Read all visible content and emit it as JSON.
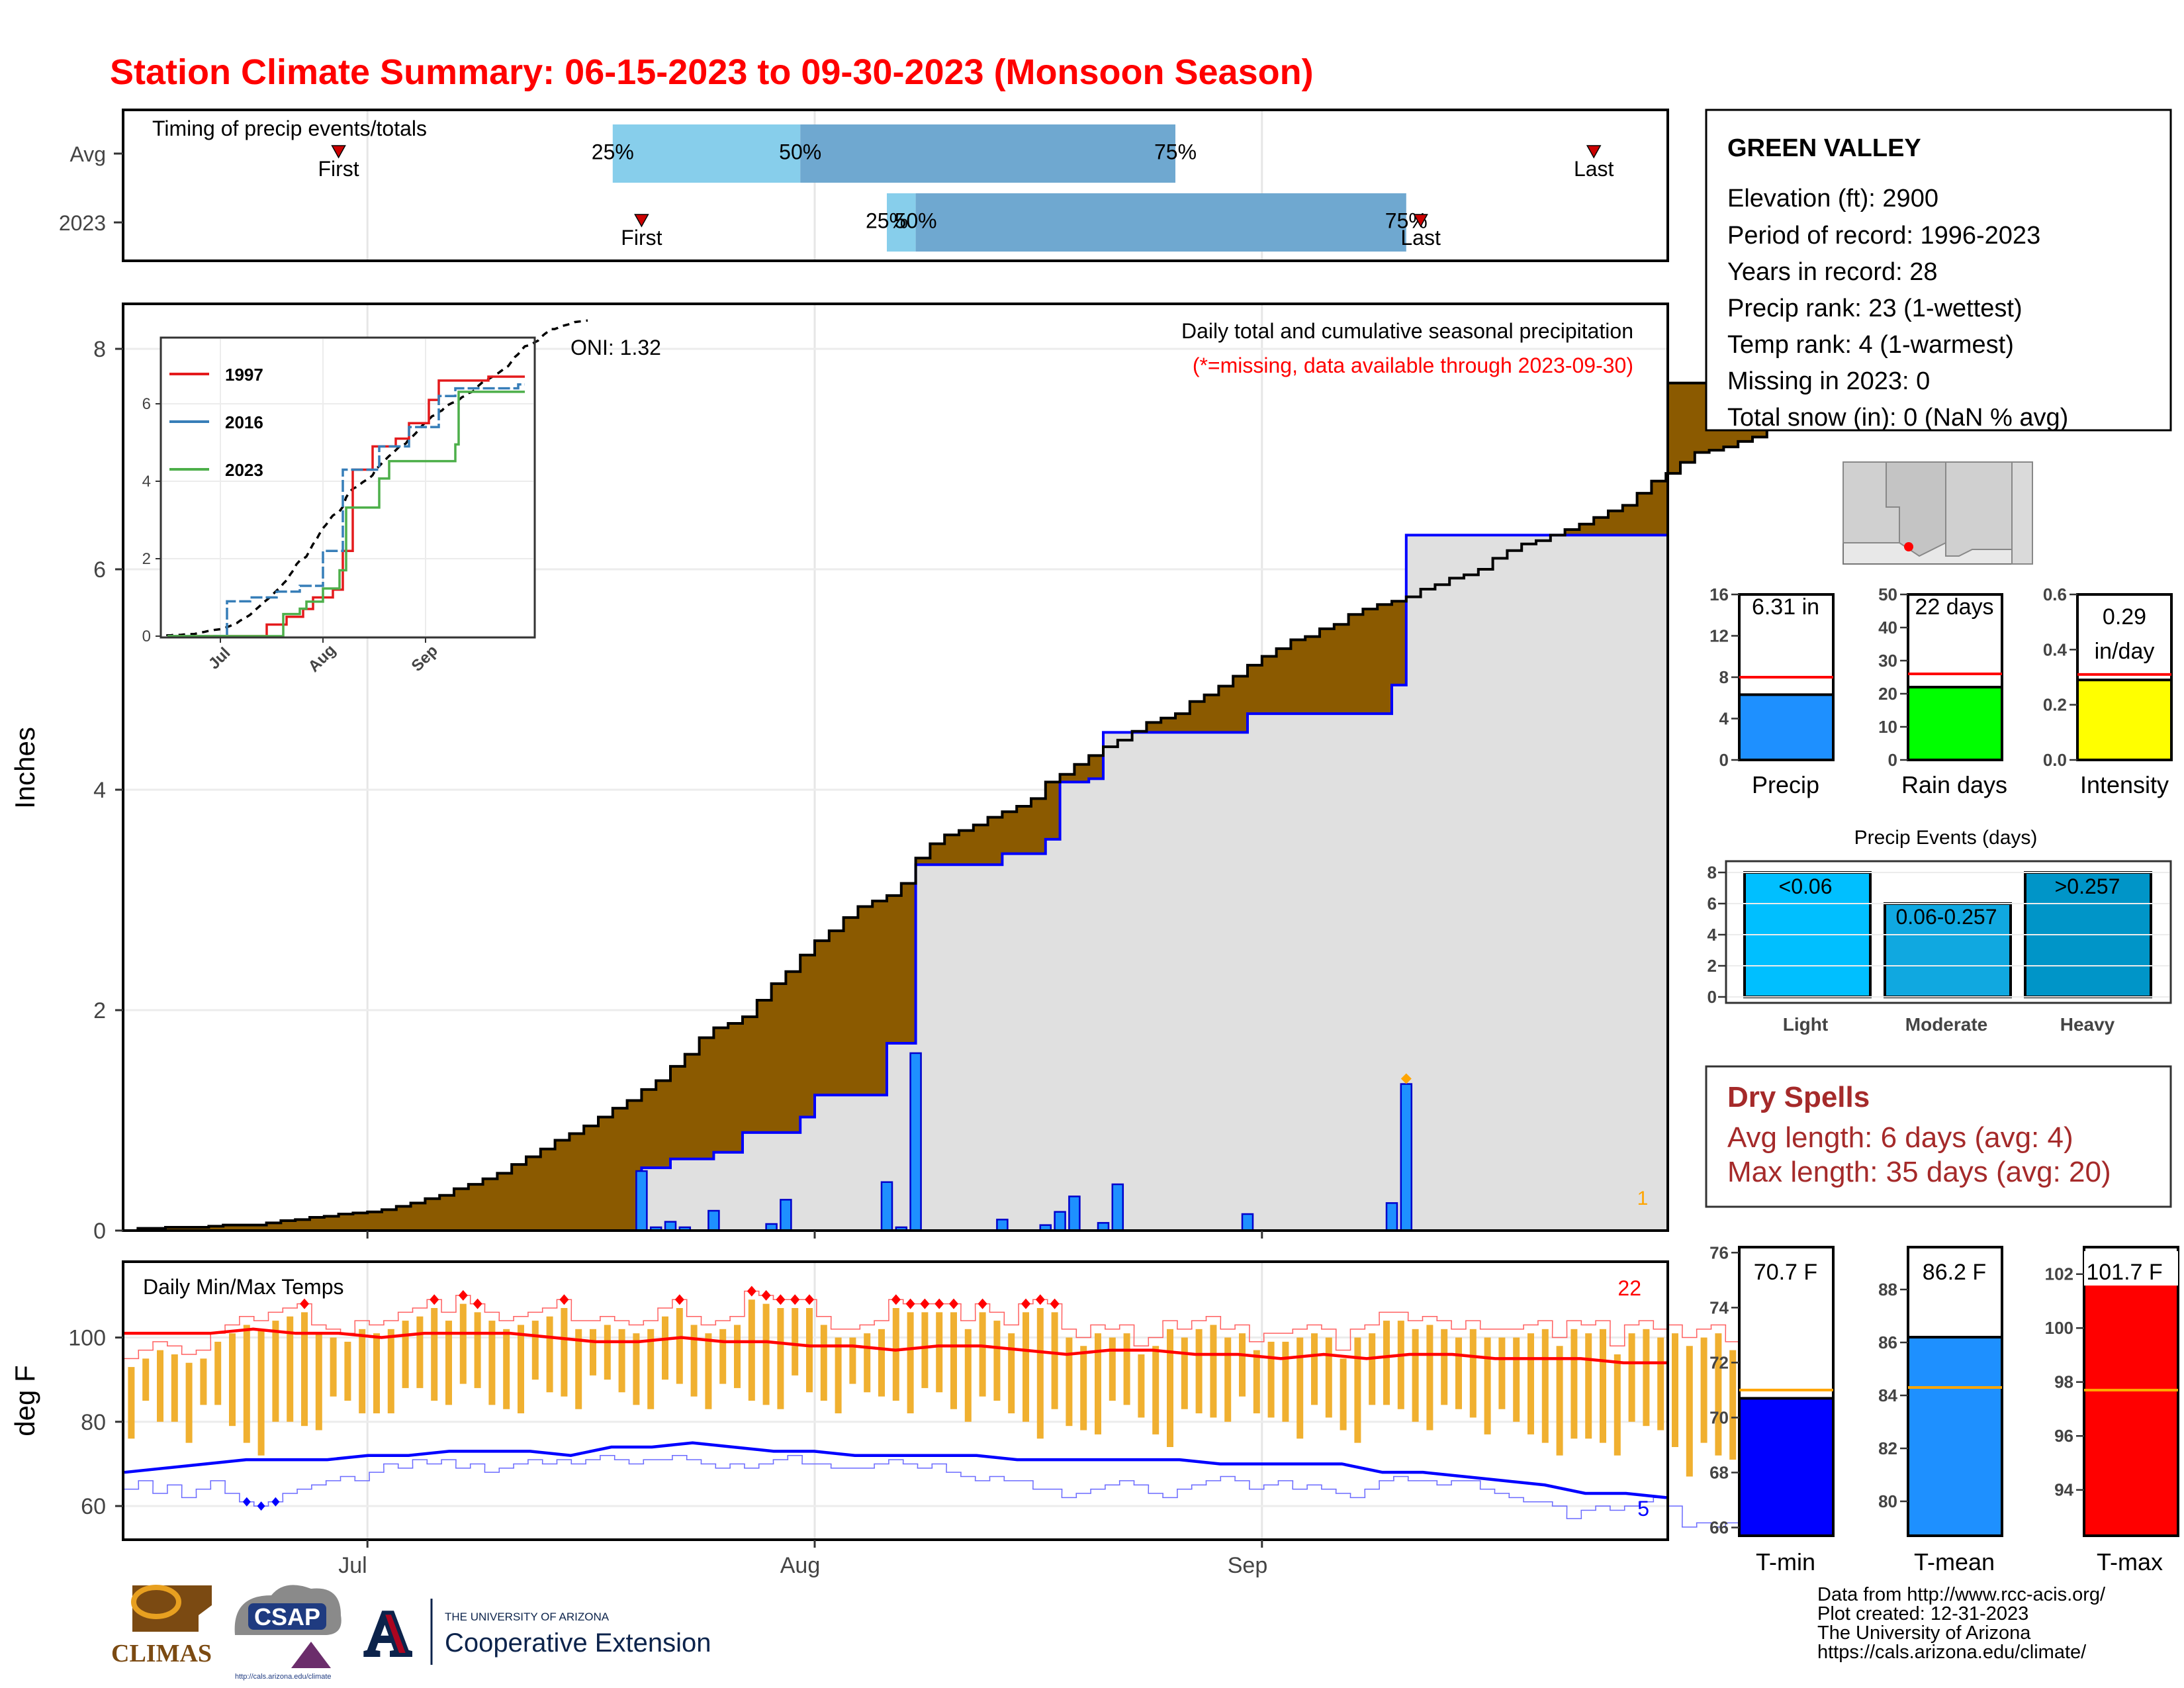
{
  "title": "Station Climate Summary: 06-15-2023 to 09-30-2023 (Monsoon Season)",
  "timing": {
    "title": "Timing of precip events/totals",
    "rows": [
      {
        "label": "Avg",
        "first": "06-29",
        "last": "09-24",
        "p25": "07-18",
        "p50": "07-31",
        "p75": "08-26",
        "first_label": "First",
        "last_label": "Last",
        "p25_label": "25%",
        "p50_label": "50%",
        "p75_label": "75%"
      },
      {
        "label": "2023",
        "first": "07-20",
        "last": "09-12",
        "p25": "08-06",
        "p50": "08-08",
        "p75": "09-11",
        "first_label": "First",
        "last_label": "Last",
        "p25_label": "25%",
        "p50_label": "50%",
        "p75_label": "75%"
      }
    ],
    "colors": {
      "light": "#87ceeb",
      "dark": "#6fa8d0",
      "marker": "#cc0000"
    }
  },
  "station": {
    "name": "GREEN VALLEY",
    "lines": [
      "Elevation (ft): 2900",
      "Period of record: 1996-2023",
      "Years in record: 28",
      "Precip rank: 23 (1-wettest)",
      "Temp rank: 4 (1-warmest)",
      "Missing in 2023: 0",
      "Total snow (in): 0 (NaN % avg)"
    ]
  },
  "gauges": {
    "precip": {
      "label": "Precip",
      "value_text": "6.31 in",
      "value": 6.31,
      "avg": 8.0,
      "ymax": 16,
      "ticks": [
        "0",
        "4",
        "8",
        "12",
        "16"
      ],
      "color": "#1e90ff"
    },
    "raindays": {
      "label": "Rain days",
      "value_text": "22 days",
      "value": 22,
      "avg": 26,
      "ymax": 50,
      "ticks": [
        "0",
        "10",
        "20",
        "30",
        "40",
        "50"
      ],
      "color": "#00ff00"
    },
    "intensity": {
      "label": "Intensity",
      "value_text": "0.29",
      "value_text2": "in/day",
      "value": 0.29,
      "avg": 0.31,
      "ymax": 0.6,
      "ticks": [
        "0.0",
        "0.2",
        "0.4",
        "0.6"
      ],
      "color": "#ffff00"
    }
  },
  "events": {
    "title": "Precip Events (days)",
    "bars": [
      {
        "label": "Light",
        "range": "<0.06",
        "value": 8,
        "color": "#00bfff"
      },
      {
        "label": "Moderate",
        "range": "0.06-0.257",
        "value": 6,
        "color": "#10a8e0"
      },
      {
        "label": "Heavy",
        "range": ">0.257",
        "value": 8,
        "color": "#0095c8"
      }
    ],
    "ticks": [
      "0",
      "2",
      "4",
      "6",
      "8"
    ]
  },
  "dryspells": {
    "title": "Dry Spells",
    "avg_line": "Avg length: 6 days (avg: 4)",
    "max_line": "Max length: 35 days (avg: 20)",
    "color": "#a52a2a"
  },
  "temps": {
    "tmin": {
      "label": "T-min",
      "value_text": "70.7 F",
      "value": 70.7,
      "avg": 71.0,
      "ymin": 65.7,
      "ymax": 76.2,
      "ticks": [
        "66",
        "68",
        "70",
        "72",
        "74",
        "76"
      ],
      "color": "#0000ff"
    },
    "tmean": {
      "label": "T-mean",
      "value_text": "86.2 F",
      "value": 86.2,
      "avg": 84.3,
      "ymin": 78.7,
      "ymax": 89.6,
      "ticks": [
        "80",
        "82",
        "84",
        "86",
        "88"
      ],
      "color": "#1e90ff"
    },
    "tmax": {
      "label": "T-max",
      "value_text": "101.7 F",
      "value": 101.7,
      "avg": 97.7,
      "ymin": 92.3,
      "ymax": 103.0,
      "ticks": [
        "94",
        "96",
        "98",
        "100",
        "102"
      ],
      "color": "#ff0000"
    }
  },
  "chart_data": [
    {
      "type": "area",
      "name": "main",
      "text1": "Daily total and cumulative seasonal precipitation",
      "text2": "(*=missing, data available through 2023-09-30)",
      "oni": "ONI: 1.32",
      "ylabel": "Inches",
      "ylim": [
        0,
        8.3
      ],
      "yticks": [
        "0",
        "2",
        "4",
        "6",
        "8"
      ],
      "xticks": [
        "Jul",
        "Aug",
        "Sep"
      ],
      "corner_note": "1",
      "avg_cumulative": [
        0.02,
        0.02,
        0.03,
        0.03,
        0.03,
        0.04,
        0.05,
        0.05,
        0.05,
        0.07,
        0.09,
        0.1,
        0.12,
        0.13,
        0.15,
        0.16,
        0.17,
        0.19,
        0.22,
        0.25,
        0.29,
        0.32,
        0.38,
        0.42,
        0.47,
        0.52,
        0.6,
        0.67,
        0.74,
        0.82,
        0.88,
        0.95,
        1.03,
        1.11,
        1.18,
        1.28,
        1.36,
        1.49,
        1.6,
        1.75,
        1.84,
        1.88,
        1.94,
        2.09,
        2.24,
        2.35,
        2.5,
        2.63,
        2.72,
        2.84,
        2.94,
        2.99,
        3.04,
        3.15,
        3.38,
        3.51,
        3.59,
        3.63,
        3.68,
        3.75,
        3.8,
        3.85,
        3.92,
        4.07,
        4.14,
        4.23,
        4.31,
        4.39,
        4.45,
        4.53,
        4.61,
        4.65,
        4.69,
        4.8,
        4.86,
        4.94,
        5.03,
        5.13,
        5.21,
        5.28,
        5.36,
        5.39,
        5.46,
        5.5,
        5.59,
        5.64,
        5.68,
        5.71,
        5.75,
        5.82,
        5.86,
        5.92,
        5.95,
        6.0,
        6.1,
        6.17,
        6.23,
        6.26,
        6.31,
        6.36,
        6.41,
        6.47,
        6.53,
        6.58,
        6.69,
        6.8,
        6.87,
        6.97,
        7.06,
        7.08,
        7.11,
        7.16,
        7.2,
        7.29,
        7.36,
        7.42,
        7.48,
        7.48,
        7.51,
        7.55,
        7.57,
        7.59,
        7.62,
        7.65,
        7.66,
        7.67,
        7.68,
        7.69
      ],
      "cumulative_2023": [
        {
          "x": "07-20",
          "y": 0.57
        },
        {
          "x": "07-22",
          "y": 0.65
        },
        {
          "x": "07-25",
          "y": 0.71
        },
        {
          "x": "07-27",
          "y": 0.89
        },
        {
          "x": "07-31",
          "y": 1.03
        },
        {
          "x": "08-01",
          "y": 1.23
        },
        {
          "x": "08-06",
          "y": 1.7
        },
        {
          "x": "08-08",
          "y": 3.32
        },
        {
          "x": "08-14",
          "y": 3.42
        },
        {
          "x": "08-17",
          "y": 3.55
        },
        {
          "x": "08-18",
          "y": 4.07
        },
        {
          "x": "08-20",
          "y": 4.1
        },
        {
          "x": "08-21",
          "y": 4.52
        },
        {
          "x": "08-31",
          "y": 4.69
        },
        {
          "x": "09-10",
          "y": 4.95
        },
        {
          "x": "09-11",
          "y": 6.31
        }
      ],
      "daily_2023": [
        {
          "x": "07-20",
          "y": 0.54
        },
        {
          "x": "07-21",
          "y": 0.03
        },
        {
          "x": "07-22",
          "y": 0.08
        },
        {
          "x": "07-23",
          "y": 0.03
        },
        {
          "x": "07-25",
          "y": 0.18
        },
        {
          "x": "07-29",
          "y": 0.06
        },
        {
          "x": "07-30",
          "y": 0.28
        },
        {
          "x": "08-06",
          "y": 0.44
        },
        {
          "x": "08-07",
          "y": 0.03
        },
        {
          "x": "08-08",
          "y": 1.61
        },
        {
          "x": "08-14",
          "y": 0.1
        },
        {
          "x": "08-17",
          "y": 0.05
        },
        {
          "x": "08-18",
          "y": 0.17
        },
        {
          "x": "08-19",
          "y": 0.31
        },
        {
          "x": "08-21",
          "y": 0.07
        },
        {
          "x": "08-22",
          "y": 0.42
        },
        {
          "x": "08-31",
          "y": 0.15
        },
        {
          "x": "09-10",
          "y": 0.25
        },
        {
          "x": "09-11",
          "y": 1.33
        }
      ],
      "colors": {
        "area": "#8b5a00",
        "fill_2023": "#e0e0e0",
        "line_2023": "#0000ff",
        "bars": "#1e90ff",
        "marker": "#ffa500",
        "note": "#ff0000"
      }
    },
    {
      "type": "line",
      "name": "inset",
      "ylim": [
        0,
        8.1
      ],
      "yticks": [
        "0",
        "2",
        "4",
        "6"
      ],
      "xticks": [
        "Jul",
        "Aug",
        "Sep"
      ],
      "series": [
        {
          "name": "1997",
          "color": "#e41a1c",
          "points": [
            {
              "x": "07-15",
              "y": 0.3
            },
            {
              "x": "07-21",
              "y": 0.5
            },
            {
              "x": "07-26",
              "y": 0.7
            },
            {
              "x": "07-29",
              "y": 1.0
            },
            {
              "x": "08-04",
              "y": 1.2
            },
            {
              "x": "08-07",
              "y": 2.2
            },
            {
              "x": "08-10",
              "y": 4.3
            },
            {
              "x": "08-16",
              "y": 4.9
            },
            {
              "x": "08-23",
              "y": 5.1
            },
            {
              "x": "08-27",
              "y": 5.5
            },
            {
              "x": "09-02",
              "y": 6.1
            },
            {
              "x": "09-05",
              "y": 6.6
            },
            {
              "x": "09-20",
              "y": 6.7
            }
          ]
        },
        {
          "name": "2016",
          "color": "#377eb8",
          "points": [
            {
              "x": "07-03",
              "y": 0.9
            },
            {
              "x": "07-10",
              "y": 1.0
            },
            {
              "x": "07-18",
              "y": 1.15
            },
            {
              "x": "07-25",
              "y": 1.3
            },
            {
              "x": "08-01",
              "y": 2.2
            },
            {
              "x": "08-07",
              "y": 4.3
            },
            {
              "x": "08-18",
              "y": 4.9
            },
            {
              "x": "08-27",
              "y": 5.4
            },
            {
              "x": "09-05",
              "y": 6.2
            },
            {
              "x": "09-10",
              "y": 6.4
            },
            {
              "x": "09-29",
              "y": 6.5
            }
          ]
        },
        {
          "name": "2023",
          "color": "#4daf4a",
          "points": [
            {
              "x": "07-20",
              "y": 0.57
            },
            {
              "x": "07-25",
              "y": 0.71
            },
            {
              "x": "07-27",
              "y": 0.89
            },
            {
              "x": "08-01",
              "y": 1.23
            },
            {
              "x": "08-06",
              "y": 1.7
            },
            {
              "x": "08-08",
              "y": 3.32
            },
            {
              "x": "08-18",
              "y": 4.07
            },
            {
              "x": "08-21",
              "y": 4.52
            },
            {
              "x": "09-10",
              "y": 4.95
            },
            {
              "x": "09-11",
              "y": 6.31
            }
          ]
        }
      ],
      "avg_color": "#000000"
    },
    {
      "type": "line",
      "name": "temps",
      "title": "Daily Min/Max Temps",
      "ylabel": "deg F",
      "ylim": [
        52,
        118
      ],
      "yticks": [
        "60",
        "80",
        "100"
      ],
      "xticks": [
        "Jul",
        "Aug",
        "Sep"
      ],
      "count_max": "22",
      "count_min": "5",
      "tmax_daily": [
        95,
        97,
        99,
        98,
        96,
        97,
        101,
        103,
        105,
        104,
        106,
        107,
        108,
        103,
        102,
        101,
        104,
        103,
        104,
        106,
        107,
        109,
        106,
        110,
        108,
        106,
        104,
        105,
        106,
        107,
        109,
        104,
        104,
        105,
        104,
        103,
        104,
        107,
        109,
        105,
        103,
        104,
        105,
        111,
        110,
        109,
        109,
        109,
        105,
        102,
        102,
        103,
        104,
        109,
        108,
        108,
        108,
        108,
        104,
        108,
        106,
        103,
        108,
        109,
        108,
        102,
        100,
        103,
        102,
        103,
        98,
        100,
        104,
        102,
        104,
        105,
        102,
        103,
        99,
        101,
        101,
        102,
        103,
        102,
        97,
        102,
        103,
        106,
        106,
        104,
        105,
        104,
        102,
        104,
        102,
        102,
        102,
        103,
        104,
        100,
        104,
        103,
        104,
        98,
        103,
        104,
        102,
        103,
        100,
        102,
        103,
        99,
        99,
        101
      ],
      "tmin_daily": [
        64,
        66,
        63,
        65,
        62,
        64,
        66,
        63,
        61,
        60,
        61,
        63,
        64,
        65,
        66,
        67,
        66,
        68,
        70,
        69,
        71,
        70,
        71,
        69,
        70,
        68,
        69,
        70,
        71,
        70,
        71,
        70,
        71,
        72,
        71,
        70,
        71,
        71,
        72,
        71,
        70,
        69,
        70,
        69,
        70,
        71,
        72,
        70,
        70,
        69,
        69,
        69,
        70,
        71,
        70,
        69,
        70,
        68,
        67,
        66,
        67,
        66,
        66,
        64,
        64,
        62,
        63,
        64,
        65,
        66,
        65,
        63,
        62,
        64,
        65,
        66,
        67,
        66,
        64,
        65,
        66,
        64,
        65,
        64,
        63,
        62,
        64,
        66,
        67,
        66,
        66,
        65,
        66,
        66,
        64,
        63,
        62,
        61,
        61,
        60,
        57,
        59,
        60,
        59,
        60,
        61,
        62,
        60,
        55,
        56,
        55,
        56,
        58,
        57
      ],
      "tmax_avg_line": [
        101,
        101,
        101,
        102,
        101,
        101,
        100,
        101,
        101,
        101,
        100,
        99,
        99,
        100,
        99,
        99,
        98,
        98,
        97,
        98,
        98,
        97,
        96,
        97,
        97,
        96,
        96,
        95,
        96,
        95,
        96,
        96,
        95,
        95,
        95,
        94,
        94
      ],
      "tmin_avg_line": [
        68,
        69,
        70,
        71,
        71,
        71,
        72,
        72,
        73,
        73,
        73,
        72,
        74,
        74,
        75,
        74,
        73,
        73,
        72,
        72,
        72,
        72,
        71,
        71,
        71,
        71,
        71,
        70,
        70,
        70,
        70,
        68,
        68,
        67,
        66,
        65,
        63,
        63,
        62
      ],
      "colors": {
        "bars": "#f0b030",
        "tmax": "#ff0000",
        "tmin": "#0000ff",
        "count_max": "#ff0000",
        "count_min": "#0000ff"
      }
    }
  ],
  "footer": {
    "logos": {
      "climas": "CLIMAS",
      "csap": "CSAP",
      "ua": "A",
      "ua_small": "THE UNIVERSITY OF ARIZONA",
      "ua_big": "Cooperative Extension",
      "csap_url": "http://cals.arizona.edu/climate"
    },
    "credits": [
      "Data from http://www.rcc-acis.org/",
      "Plot created: 12-31-2023",
      "The University of Arizona",
      "https://cals.arizona.edu/climate/"
    ]
  }
}
